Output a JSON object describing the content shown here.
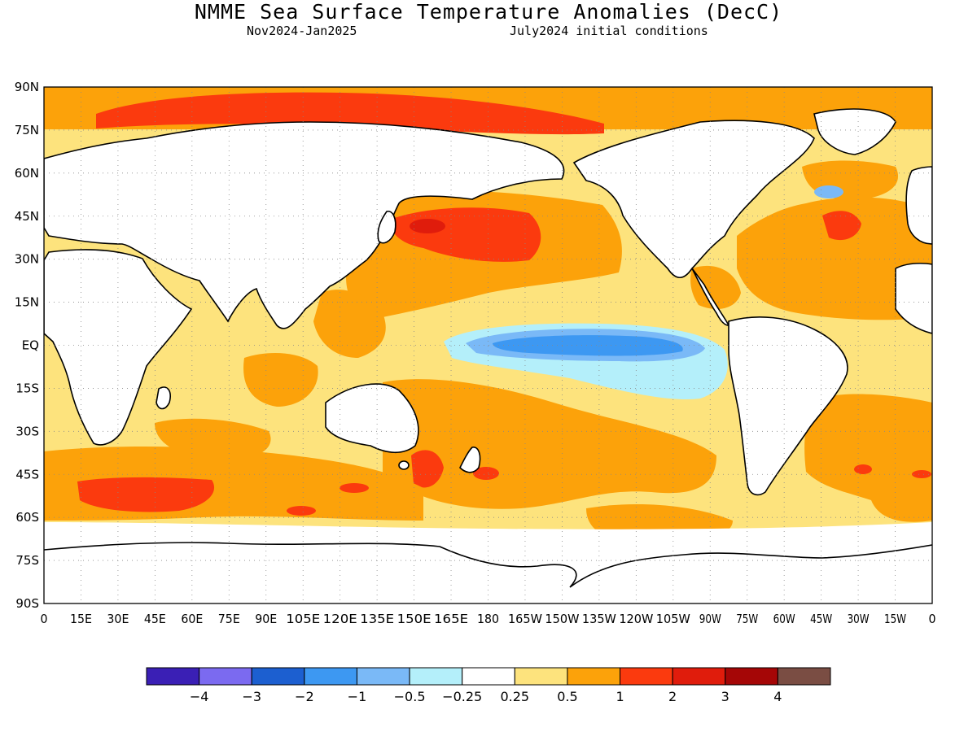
{
  "title": "NMME Sea Surface Temperature Anomalies (DecC)",
  "subtitle_left": "Nov2024-Jan2025",
  "subtitle_right": "July2024 initial conditions",
  "map": {
    "lat_labels": [
      "90N",
      "75N",
      "60N",
      "45N",
      "30N",
      "15N",
      "EQ",
      "15S",
      "30S",
      "45S",
      "60S",
      "75S",
      "90S"
    ],
    "lon_labels": [
      "0",
      "15E",
      "30E",
      "45E",
      "60E",
      "75E",
      "90E",
      "105E",
      "120E",
      "135E",
      "150E",
      "165E",
      "180",
      "165W",
      "150W",
      "135W",
      "120W",
      "105W",
      "90W",
      "75W",
      "60W",
      "45W",
      "30W",
      "15W",
      "0"
    ],
    "grid": "dotted"
  },
  "colorbar": {
    "colors": [
      "#3a1fb5",
      "#7b6af0",
      "#1c5fd0",
      "#3d98f2",
      "#7ab9f7",
      "#b4effa",
      "#ffffff",
      "#fde37d",
      "#fca20a",
      "#fb3a0e",
      "#e01c0c",
      "#a50606",
      "#7a4d43"
    ],
    "labels": [
      "-4",
      "-3",
      "-2",
      "-1",
      "-0.5",
      "-0.25",
      "0.25",
      "0.5",
      "1",
      "2",
      "3",
      "4"
    ]
  },
  "colors": {
    "neutral": "#ffffff",
    "pale_yellow": "#fde37d",
    "orange": "#fca20a",
    "red_orange": "#fb3a0e",
    "red": "#e01c0c",
    "light_cyan": "#b4effa",
    "light_blue": "#7ab9f7",
    "blue": "#3d98f2",
    "coast": "#000000"
  }
}
